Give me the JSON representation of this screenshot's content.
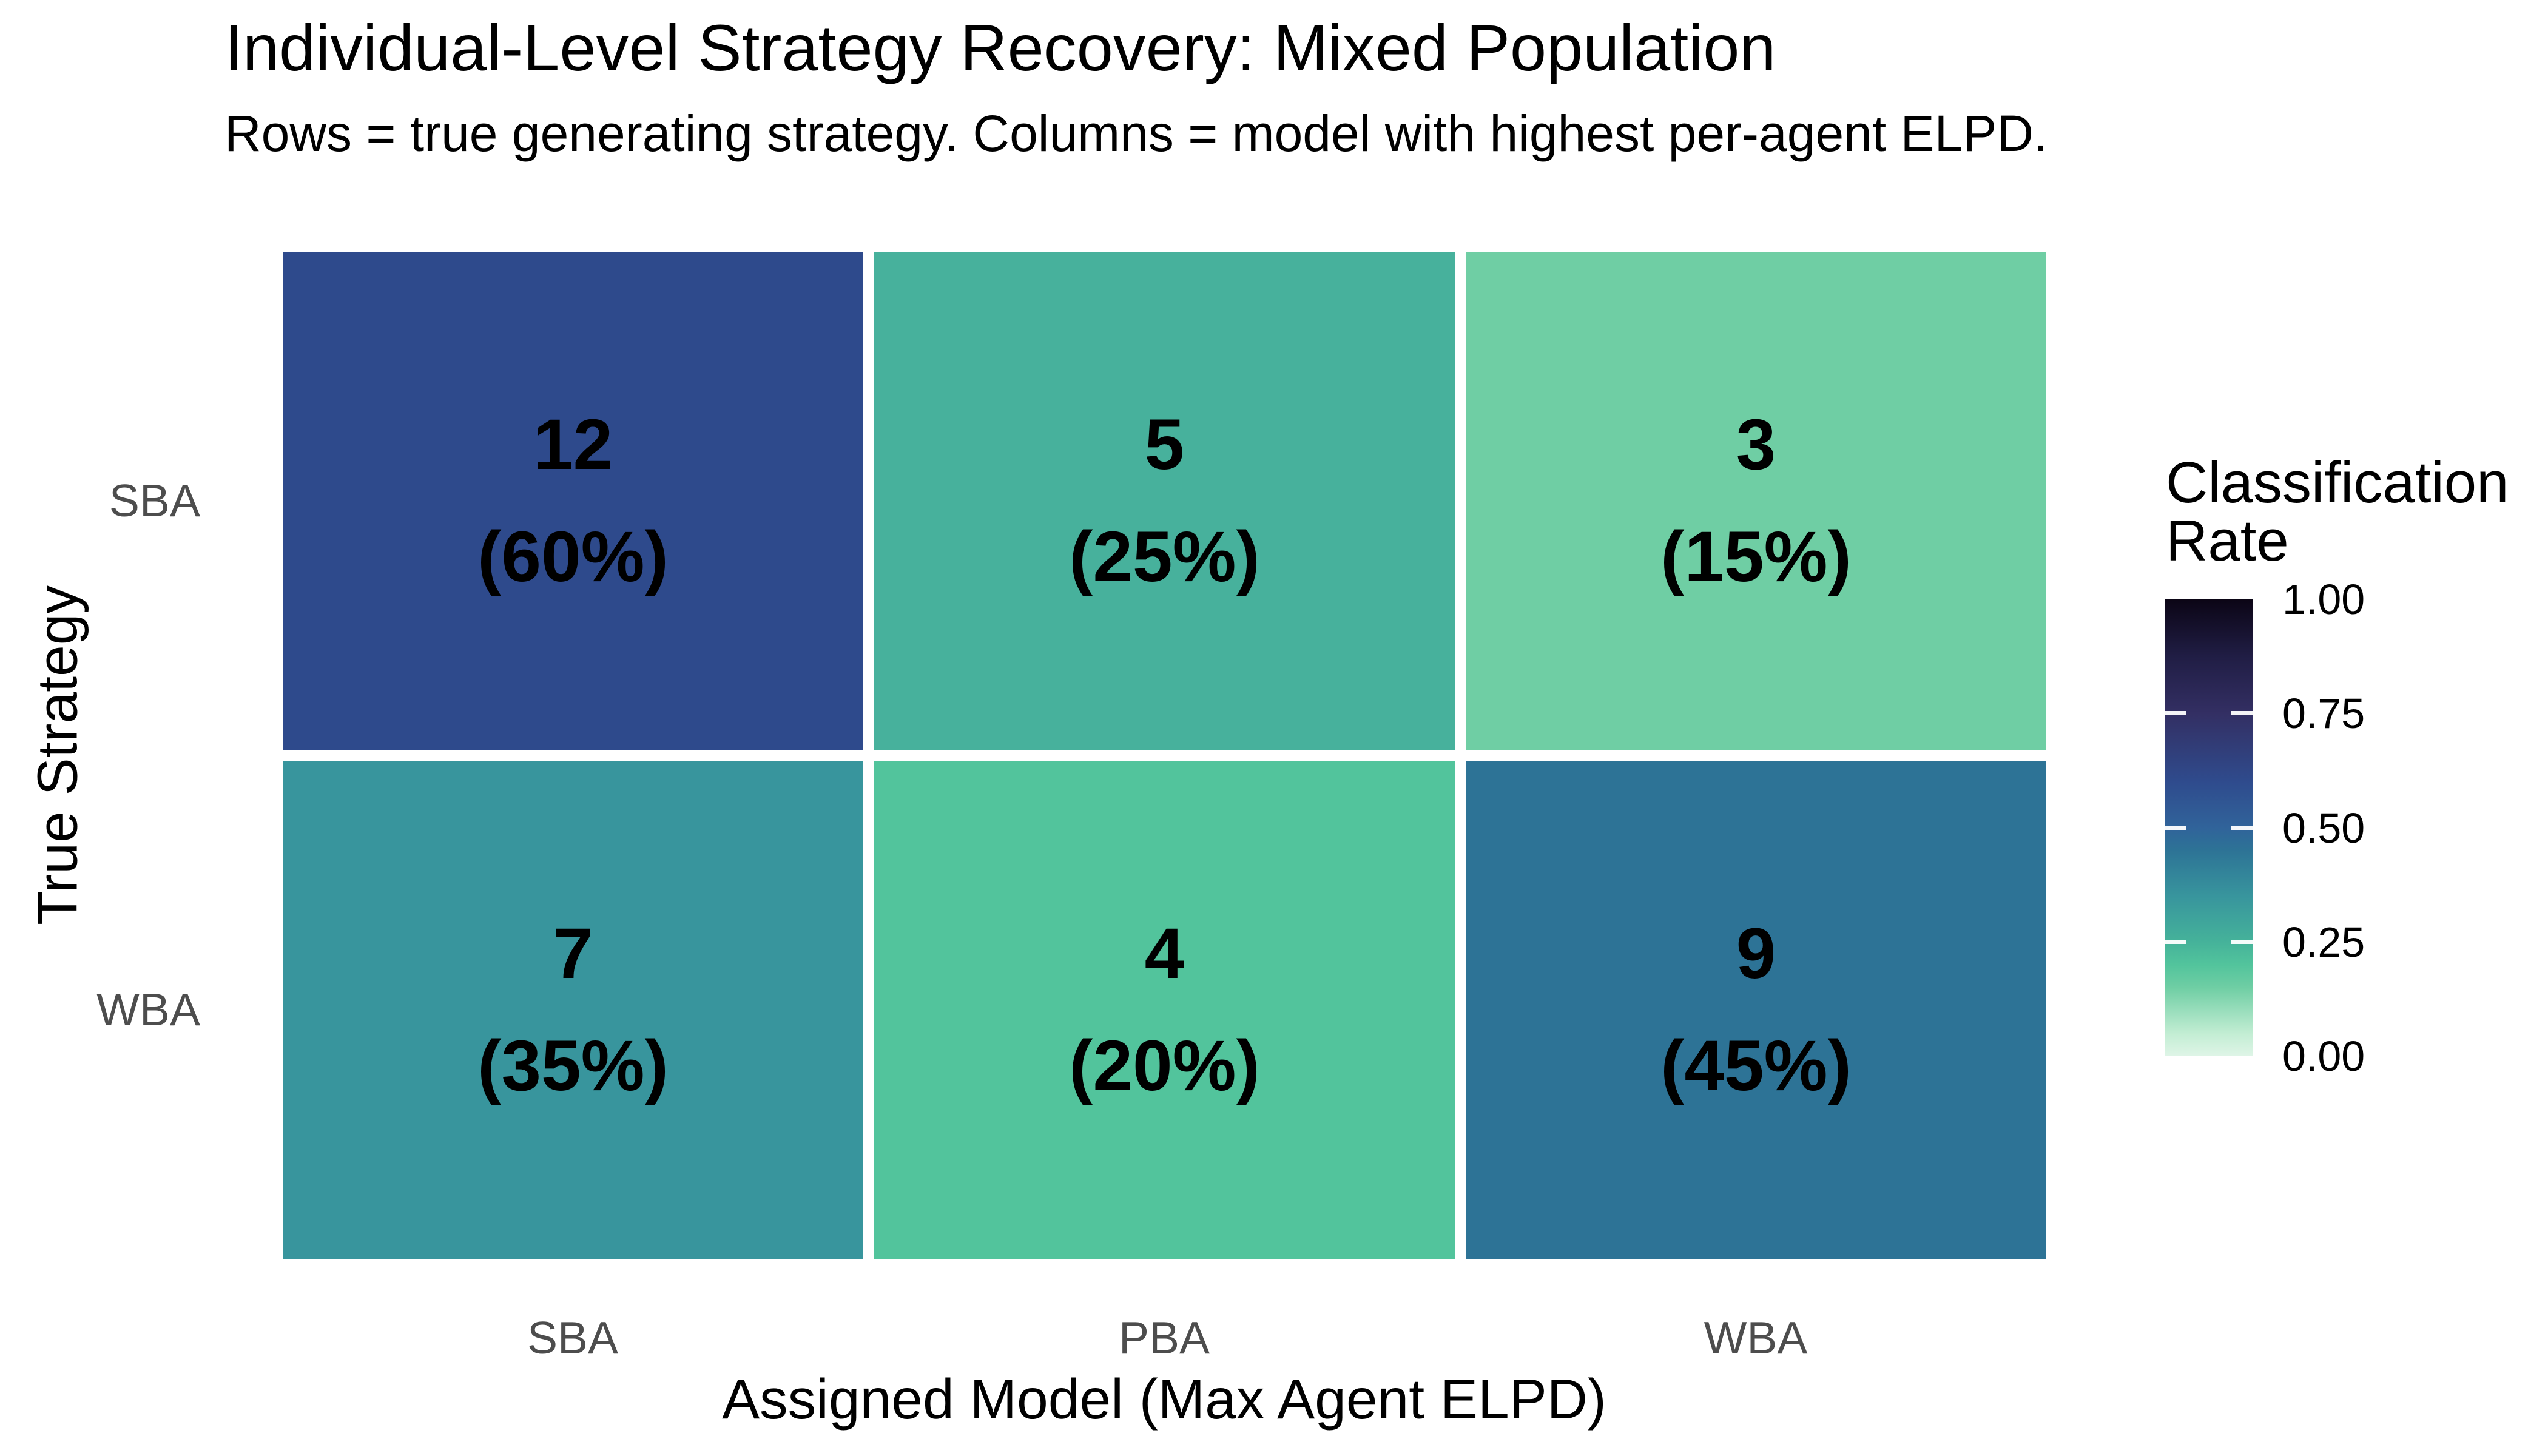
{
  "title": "Individual-Level Strategy Recovery: Mixed Population",
  "subtitle": "Rows = true generating strategy. Columns = model with highest per-agent ELPD.",
  "axes": {
    "x_title": "Assigned Model (Max Agent ELPD)",
    "y_title": "True Strategy",
    "x_ticks": [
      "SBA",
      "PBA",
      "WBA"
    ],
    "y_ticks": [
      "SBA",
      "WBA"
    ]
  },
  "legend": {
    "title_line1": "Classification",
    "title_line2": "Rate",
    "tick_labels": [
      "1.00",
      "0.75",
      "0.50",
      "0.25",
      "0.00"
    ],
    "gradient_stops": [
      "#0B0515 0%",
      "#201D44 12.5%",
      "#332F63 25%",
      "#2F4B8D 40%",
      "#30639A 50%",
      "#2D7396 55%",
      "#38959D 65%",
      "#45B29A 75%",
      "#52C49C 80%",
      "#6FCEA4 85%",
      "#C2EDD3 95%",
      "#DFF5E7 100%"
    ]
  },
  "cells": [
    {
      "row": "SBA",
      "col": "SBA",
      "count": "12",
      "pct": "(60%)",
      "color": "#2E4A8C"
    },
    {
      "row": "SBA",
      "col": "PBA",
      "count": "5",
      "pct": "(25%)",
      "color": "#47B19C"
    },
    {
      "row": "SBA",
      "col": "WBA",
      "count": "3",
      "pct": "(15%)",
      "color": "#6FCEA4"
    },
    {
      "row": "WBA",
      "col": "SBA",
      "count": "7",
      "pct": "(35%)",
      "color": "#38959D"
    },
    {
      "row": "WBA",
      "col": "PBA",
      "count": "4",
      "pct": "(20%)",
      "color": "#52C49C"
    },
    {
      "row": "WBA",
      "col": "WBA",
      "count": "9",
      "pct": "(45%)",
      "color": "#2D7396"
    }
  ],
  "colors": {
    "background": "#FFFFFF",
    "axis_text": "#4D4D4D",
    "text": "#000000",
    "tile_gap": "#FFFFFF"
  },
  "chart_data": {
    "type": "heatmap",
    "title": "Individual-Level Strategy Recovery: Mixed Population",
    "subtitle": "Rows = true generating strategy. Columns = model with highest per-agent ELPD.",
    "xlabel": "Assigned Model (Max Agent ELPD)",
    "ylabel": "True Strategy",
    "rows": [
      "SBA",
      "WBA"
    ],
    "columns": [
      "SBA",
      "PBA",
      "WBA"
    ],
    "counts": [
      [
        12,
        5,
        3
      ],
      [
        7,
        4,
        9
      ]
    ],
    "rates": [
      [
        0.6,
        0.25,
        0.15
      ],
      [
        0.35,
        0.2,
        0.45
      ]
    ],
    "cell_labels": [
      [
        "12\n(60%)",
        "5\n(25%)",
        "3\n(15%)"
      ],
      [
        "7\n(35%)",
        "4\n(20%)",
        "9\n(45%)"
      ]
    ],
    "legend_title": "Classification Rate",
    "colorbar_ticks": [
      1.0,
      0.75,
      0.5,
      0.25,
      0.0
    ],
    "colorbar_range": [
      0,
      1
    ],
    "colormap": "mako-reversed (dark = high rate)",
    "grid": false,
    "legend_position": "right"
  }
}
